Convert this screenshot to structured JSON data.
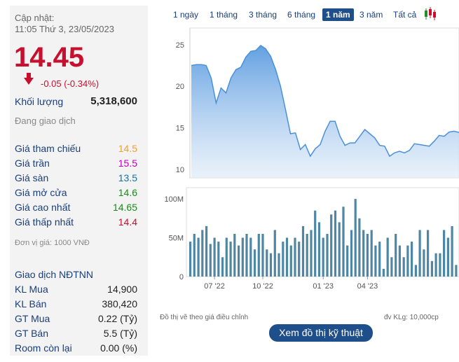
{
  "update": {
    "label": "Cập nhật:",
    "time": "11:05 Thứ 3, 23/05/2023"
  },
  "price": "14.45",
  "change": "-0.05 (-0.34%)",
  "volume": {
    "label": "Khối lượng",
    "value": "5,318,600"
  },
  "status": "Đang giao dịch",
  "stats": [
    {
      "label": "Giá tham chiếu",
      "value": "14.5",
      "color": "#f0a030"
    },
    {
      "label": "Giá trần",
      "value": "15.5",
      "color": "#c000c0"
    },
    {
      "label": "Giá sàn",
      "value": "13.5",
      "color": "#1a6fa0"
    },
    {
      "label": "Giá mở cửa",
      "value": "14.6",
      "color": "#1a8a1a"
    },
    {
      "label": "Giá cao nhất",
      "value": "14.65",
      "color": "#1a8a1a"
    },
    {
      "label": "Giá thấp nhất",
      "value": "14.4",
      "color": "#c8102e"
    }
  ],
  "unit_note": "Đơn vị giá: 1000 VNĐ",
  "foreign": {
    "title": "Giao dịch NĐTNN",
    "rows": [
      {
        "label": "KL Mua",
        "value": "14,900"
      },
      {
        "label": "KL Bán",
        "value": "380,420"
      },
      {
        "label": "GT Mua",
        "value": "0.22 (Tỷ)"
      },
      {
        "label": "GT Bán",
        "value": "5.5 (Tỷ)"
      },
      {
        "label": "Room còn lại",
        "value": "0.00 (%)"
      }
    ]
  },
  "tabs": [
    "1 ngày",
    "1 tháng",
    "3 tháng",
    "6 tháng",
    "1 năm",
    "3 năm",
    "Tất cả"
  ],
  "active_tab": "1 năm",
  "notes": {
    "left": "Đồ thị vẽ theo giá điều chỉnh",
    "right": "đv KLg: 10,000cp"
  },
  "tech_button": "Xem đồ thị kỹ thuật",
  "chart_data": [
    {
      "type": "area",
      "ylim": [
        9,
        27
      ],
      "yticks": [
        "25",
        "20",
        "15",
        "10"
      ],
      "ytick_values": [
        25,
        20,
        15,
        10
      ],
      "color": "#4a90d9",
      "x": [
        0,
        1,
        2,
        3,
        4,
        5,
        6,
        7,
        8,
        9,
        10,
        11,
        12,
        13,
        14,
        15,
        16,
        17,
        18,
        19,
        20,
        21,
        22,
        23,
        24,
        25,
        26,
        27,
        28,
        29,
        30,
        31,
        32,
        33,
        34,
        35,
        36,
        37,
        38,
        39,
        40,
        41,
        42,
        43,
        44,
        45,
        46,
        47,
        48,
        49,
        50,
        51,
        52,
        53,
        54
      ],
      "values": [
        22.5,
        22.6,
        22.6,
        22.5,
        21,
        18,
        19.8,
        19.2,
        21,
        22,
        22.3,
        23.5,
        24.2,
        24.3,
        24.9,
        24.5,
        23.6,
        22,
        20,
        17.2,
        14.3,
        14.4,
        12.4,
        13,
        11.6,
        12.5,
        13,
        14.6,
        15.8,
        15.8,
        14,
        12.9,
        13.2,
        13.2,
        14,
        14.8,
        14.3,
        13.8,
        12.9,
        12.8,
        11.6,
        12,
        12.2,
        12,
        12.3,
        13.1,
        13,
        12.9,
        12.8,
        13.4,
        14.1,
        14,
        14.5,
        14.6,
        14.45
      ]
    },
    {
      "type": "bar",
      "ylim": [
        0,
        110
      ],
      "yticks": [
        "100M",
        "50M",
        "0"
      ],
      "ytick_values": [
        100,
        50,
        0
      ],
      "xticklabels": [
        "07 '22",
        "10 '22",
        "01 '23",
        "04 '23"
      ],
      "xtick_index": [
        6,
        18,
        33,
        44
      ],
      "color": "#4f86a4",
      "values": [
        45,
        55,
        50,
        60,
        65,
        42,
        50,
        45,
        25,
        50,
        45,
        55,
        40,
        50,
        55,
        50,
        35,
        55,
        55,
        35,
        30,
        60,
        30,
        45,
        50,
        40,
        50,
        45,
        65,
        55,
        60,
        85,
        70,
        50,
        55,
        80,
        85,
        70,
        90,
        40,
        60,
        100,
        75,
        60,
        55,
        60,
        40,
        45,
        10,
        50,
        25,
        55,
        40,
        25,
        40,
        45,
        15,
        60,
        35,
        60,
        20,
        30,
        30,
        60,
        50,
        65,
        15
      ]
    }
  ]
}
